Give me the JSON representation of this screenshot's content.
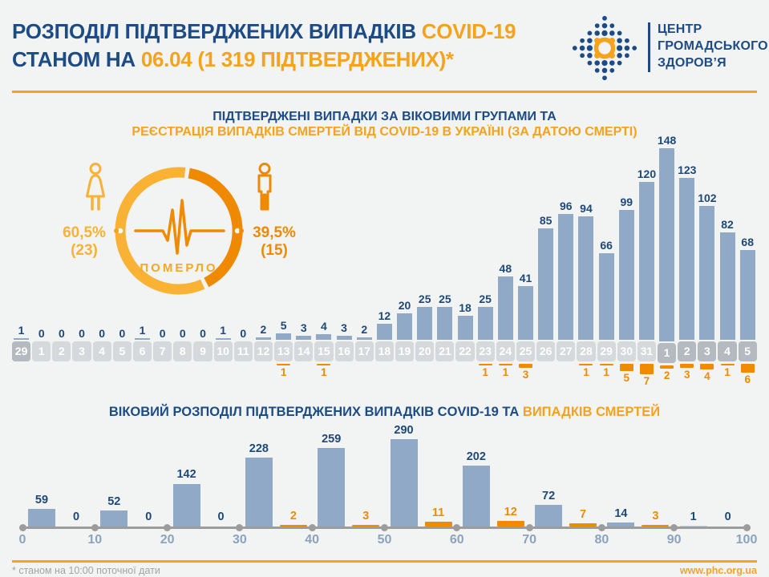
{
  "header": {
    "title_line1_blue": "РОЗПОДІЛ ПІДТВЕРДЖЕНИХ ВИПАДКІВ",
    "title_line1_orange": "COVID-19",
    "title_line2_blue": "СТАНОМ НА",
    "title_line2_orange": "06.04 (1 319 ПІДТВЕРДЖЕНИХ)*",
    "logo_line1": "ЦЕНТР",
    "logo_line2": "ГРОМАДСЬКОГО",
    "logo_line3": "ЗДОРОВ’Я"
  },
  "chart1": {
    "title_line1": "ПІДТВЕРДЖЕНІ ВИПАДКИ ЗА ВІКОВИМИ ГРУПАМИ ТА",
    "title_line2": "РЕЄСТРАЦІЯ ВИПАДКІВ СМЕРТЕЙ ВІД COVID-19 В УКРАЇНІ (ЗА ДАТОЮ СМЕРТІ)"
  },
  "donut": {
    "label": "ПОМЕРЛО",
    "female_percent": "60,5%",
    "female_count": "(23)",
    "male_percent": "39,5%",
    "male_count": "(15)"
  },
  "chart2": {
    "title_blue": "ВІКОВИЙ РОЗПОДІЛ ПІДТВЕРДЖЕНИХ ВИПАДКІВ COVID-19 ТА",
    "title_orange": "ВИПАДКІВ СМЕРТЕЙ"
  },
  "footer": {
    "note": "* станом на 10:00 поточної дати",
    "url": "www.phc.org.ua"
  },
  "colors": {
    "navy": "#1C4B85",
    "accent_orange": "#F5A21C",
    "deep_orange": "#EF8A00",
    "light_orange": "#F9B233",
    "bar_blue": "#8FA9C7",
    "cell_light": "#D6D9DB",
    "cell_dark": "#B4BAC0",
    "axis_gray": "#9C9C9C",
    "tick_blue": "#8BA3BE"
  },
  "chart_data": [
    {
      "type": "pie",
      "title": "ПОМЕРЛО",
      "slices": [
        {
          "name": "female",
          "percent": 60.5,
          "count": 23
        },
        {
          "name": "male",
          "percent": 39.5,
          "count": 15
        }
      ]
    },
    {
      "type": "bar",
      "title": "ПІДТВЕРДЖЕНІ ВИПАДКИ ЗА ВІКОВИМИ ГРУПАМИ ТА РЕЄСТРАЦІЯ ВИПАДКІВ СМЕРТЕЙ ВІД COVID-19 В УКРАЇНІ (ЗА ДАТОЮ СМЕРТІ)",
      "categories": [
        "29",
        "1",
        "2",
        "3",
        "4",
        "5",
        "6",
        "7",
        "8",
        "9",
        "10",
        "11",
        "12",
        "13",
        "14",
        "15",
        "16",
        "17",
        "18",
        "19",
        "20",
        "21",
        "22",
        "23",
        "24",
        "25",
        "26",
        "27",
        "28",
        "29",
        "30",
        "31",
        "1",
        "2",
        "3",
        "4",
        "5"
      ],
      "dark_cells": [
        0,
        32,
        33,
        34,
        35,
        36
      ],
      "series": [
        {
          "name": "confirmed_cases",
          "values": [
            1,
            0,
            0,
            0,
            0,
            0,
            1,
            0,
            0,
            0,
            1,
            0,
            2,
            5,
            3,
            4,
            3,
            2,
            12,
            20,
            25,
            25,
            18,
            25,
            48,
            41,
            85,
            96,
            94,
            66,
            99,
            120,
            148,
            123,
            102,
            82,
            68
          ]
        },
        {
          "name": "deaths",
          "values": [
            0,
            0,
            0,
            0,
            0,
            0,
            0,
            0,
            0,
            0,
            0,
            0,
            0,
            1,
            0,
            1,
            0,
            0,
            0,
            0,
            0,
            0,
            0,
            1,
            1,
            3,
            0,
            0,
            1,
            1,
            5,
            7,
            2,
            3,
            4,
            1,
            6
          ]
        }
      ]
    },
    {
      "type": "bar",
      "title": "ВІКОВИЙ РОЗПОДІЛ ПІДТВЕРДЖЕНИХ ВИПАДКІВ COVID-19 ТА ВИПАДКІВ СМЕРТЕЙ",
      "x_ticks": [
        "0",
        "10",
        "20",
        "30",
        "40",
        "50",
        "60",
        "70",
        "80",
        "90",
        "100"
      ],
      "series": [
        {
          "name": "confirmed_cases",
          "values": [
            59,
            52,
            142,
            228,
            259,
            290,
            202,
            72,
            14,
            1
          ]
        },
        {
          "name": "deaths",
          "values": [
            0,
            0,
            0,
            2,
            3,
            11,
            12,
            7,
            3,
            0
          ]
        }
      ]
    }
  ]
}
